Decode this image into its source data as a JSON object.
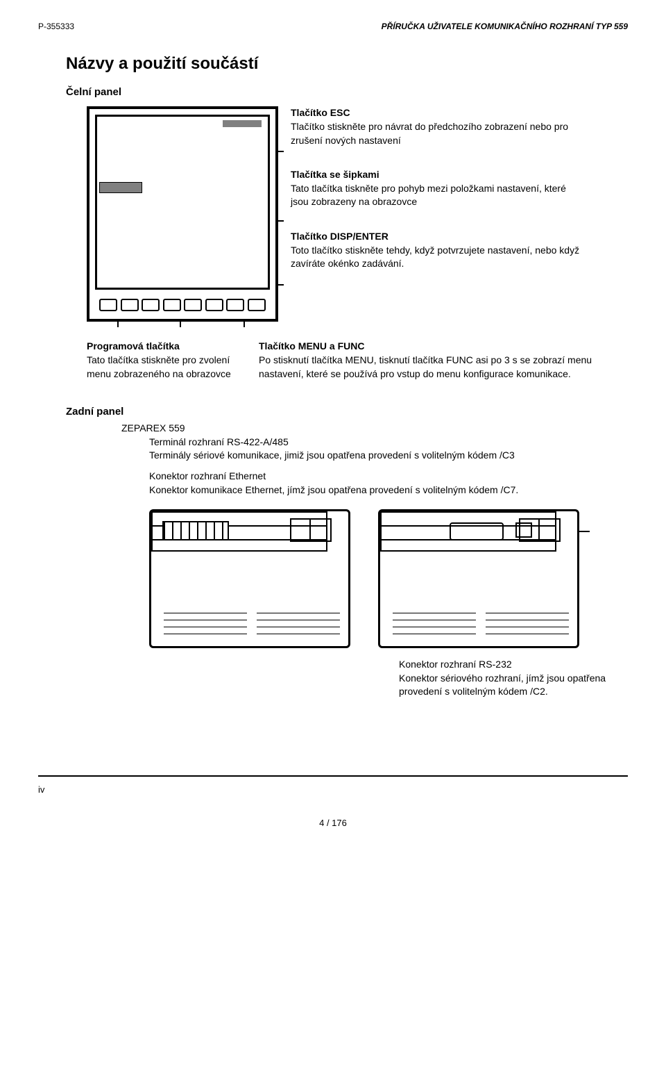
{
  "header": {
    "left": "P-355333",
    "right": "PŘÍRUČKA UŽIVATELE KOMUNIKAČNÍHO ROZHRANÍ   TYP  559"
  },
  "title": "Názvy a použití součástí",
  "front_section_title": "Čelní panel",
  "side_labels": [
    {
      "title": "Tlačítko ESC",
      "desc": "Tlačítko stiskněte pro návrat do předchozího zobrazení nebo pro zrušení nových nastavení"
    },
    {
      "title": "Tlačítka se šipkami",
      "desc": "Tato tlačítka tiskněte pro pohyb mezi položkami nastavení, které jsou zobrazeny na obrazovce"
    },
    {
      "title": "Tlačítko DISP/ENTER",
      "desc": "Toto tlačítko stiskněte tehdy, když potvrzujete nastavení, nebo když zavíráte okénko zadávání."
    }
  ],
  "bottom_labels": [
    {
      "title": "Programová tlačítka",
      "desc": "Tato tlačítka stiskněte pro zvolení menu zobrazeného na obrazovce"
    },
    {
      "title": "Tlačítko MENU a FUNC",
      "desc": "Po stisknutí tlačítka MENU, tisknutí tlačítka FUNC asi po 3 s se zobrazí menu nastavení, které se používá pro vstup do menu konfigurace komunikace."
    }
  ],
  "rear": {
    "section_title": "Zadní panel",
    "product": "ZEPAREX 559",
    "term_title": "Terminál rozhraní RS-422-A/485",
    "term_desc": "Terminály sériové komunikace, jimiž jsou opatřena provedení s volitelným kódem /C3",
    "eth_title": "Konektor rozhraní Ethernet",
    "eth_desc": "Konektor komunikace Ethernet, jímž jsou opatřena provedení s volitelným kódem /C7.",
    "rs232_title": "Konektor rozhraní RS-232",
    "rs232_desc": "Konektor sériového rozhraní, jímž jsou opatřena provedení s volitelným kódem /C2."
  },
  "footer": {
    "roman": "iv",
    "page": "4 / 176"
  },
  "colors": {
    "text": "#000000",
    "bg": "#ffffff",
    "rule": "#000000",
    "blur": "#808080"
  }
}
